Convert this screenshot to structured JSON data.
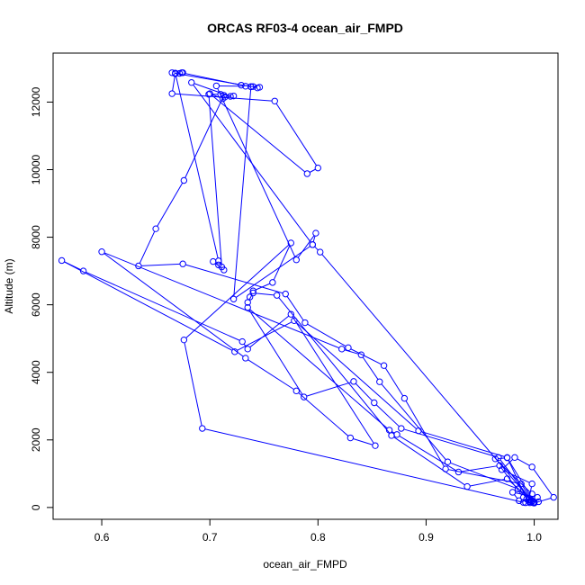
{
  "chart_data": {
    "type": "line",
    "title": "ORCAS RF03-4 ocean_air_FMPD",
    "xlabel": "ocean_air_FMPD",
    "ylabel": "Altitude (m)",
    "xlim": [
      0.555,
      1.022
    ],
    "ylim": [
      -350,
      13450
    ],
    "xticks": [
      0.6,
      0.7,
      0.8,
      0.9,
      1.0
    ],
    "xtick_labels": [
      "0.6",
      "0.7",
      "0.8",
      "0.9",
      "1.0"
    ],
    "yticks": [
      0,
      2000,
      4000,
      6000,
      8000,
      10000,
      12000
    ],
    "ytick_labels": [
      "0",
      "2000",
      "4000",
      "6000",
      "8000",
      "10000",
      "12000"
    ],
    "grid": false,
    "legend": "none",
    "series": [
      {
        "color": "#0000ff",
        "marker": "open-circle",
        "line": true,
        "points": [
          [
            0.672,
            12850
          ],
          [
            0.675,
            12870
          ],
          [
            0.668,
            12840
          ],
          [
            0.665,
            12250
          ],
          [
            0.76,
            12030
          ],
          [
            0.8,
            10050
          ],
          [
            0.79,
            9880
          ],
          [
            0.7,
            12250
          ],
          [
            0.712,
            12100
          ],
          [
            0.713,
            12200
          ],
          [
            0.676,
            9680
          ],
          [
            0.65,
            8250
          ],
          [
            0.634,
            7150
          ],
          [
            0.675,
            7210
          ],
          [
            0.77,
            6320
          ],
          [
            0.788,
            5470
          ],
          [
            0.828,
            4730
          ],
          [
            0.861,
            4200
          ],
          [
            0.88,
            3230
          ],
          [
            0.918,
            1140
          ],
          [
            0.988,
            700
          ],
          [
            0.998,
            200
          ],
          [
            1.0,
            150
          ],
          [
            0.993,
            250
          ],
          [
            0.975,
            1480
          ],
          [
            0.893,
            2270
          ],
          [
            0.778,
            5530
          ],
          [
            0.723,
            4610
          ],
          [
            0.563,
            7310
          ],
          [
            0.583,
            7000
          ],
          [
            0.73,
            4910
          ],
          [
            0.735,
            4690
          ],
          [
            0.775,
            5720
          ],
          [
            0.853,
            1830
          ],
          [
            0.83,
            2060
          ],
          [
            0.78,
            3450
          ],
          [
            0.733,
            4420
          ],
          [
            0.6,
            7570
          ],
          [
            0.822,
            4690
          ],
          [
            0.84,
            4520
          ],
          [
            0.857,
            3720
          ],
          [
            0.92,
            1350
          ],
          [
            0.985,
            550
          ],
          [
            0.996,
            180
          ],
          [
            0.99,
            300
          ],
          [
            0.968,
            1240
          ],
          [
            0.93,
            1050
          ],
          [
            0.873,
            2160
          ],
          [
            0.866,
            2290
          ],
          [
            0.735,
            5920
          ],
          [
            0.787,
            3270
          ],
          [
            0.833,
            3730
          ],
          [
            0.852,
            3100
          ],
          [
            0.877,
            2340
          ],
          [
            0.967,
            1480
          ],
          [
            0.997,
            220
          ],
          [
            1.0,
            140
          ],
          [
            0.975,
            850
          ],
          [
            0.938,
            620
          ],
          [
            0.868,
            2130
          ],
          [
            0.762,
            6280
          ],
          [
            0.74,
            6350
          ],
          [
            0.735,
            6070
          ],
          [
            0.737,
            6230
          ],
          [
            0.74,
            6410
          ],
          [
            0.758,
            6660
          ],
          [
            0.775,
            7830
          ],
          [
            0.676,
            4960
          ],
          [
            0.693,
            2340
          ],
          [
            0.99,
            150
          ],
          [
            1.0,
            130
          ],
          [
            1.018,
            300
          ],
          [
            0.998,
            1200
          ],
          [
            0.982,
            1480
          ],
          [
            0.97,
            1120
          ],
          [
            0.998,
            700
          ],
          [
            0.995,
            230
          ],
          [
            0.998,
            180
          ],
          [
            1.003,
            300
          ],
          [
            0.98,
            450
          ],
          [
            0.986,
            200
          ],
          [
            0.992,
            140
          ],
          [
            0.996,
            140
          ],
          [
            1.0,
            160
          ],
          [
            0.975,
            1470
          ],
          [
            0.964,
            1440
          ],
          [
            0.998,
            400
          ],
          [
            0.996,
            170
          ],
          [
            1.004,
            170
          ],
          [
            0.999,
            140
          ],
          [
            0.802,
            7560
          ],
          [
            0.795,
            7780
          ],
          [
            0.798,
            8120
          ],
          [
            0.78,
            7330
          ],
          [
            0.706,
            12480
          ],
          [
            0.733,
            12470
          ],
          [
            0.746,
            12440
          ],
          [
            0.74,
            12460
          ],
          [
            0.729,
            12500
          ],
          [
            0.674,
            12870
          ],
          [
            0.668,
            12860
          ],
          [
            0.708,
            7300
          ],
          [
            0.708,
            7180
          ],
          [
            0.703,
            7280
          ],
          [
            0.713,
            7030
          ],
          [
            0.711,
            7120
          ],
          [
            0.699,
            12230
          ],
          [
            0.71,
            12230
          ],
          [
            0.722,
            12180
          ],
          [
            0.714,
            12150
          ],
          [
            0.719,
            12170
          ],
          [
            0.683,
            12580
          ],
          [
            0.795,
            7780
          ],
          [
            0.722,
            6170
          ],
          [
            0.738,
            12450
          ],
          [
            0.744,
            12420
          ],
          [
            0.738,
            12460
          ],
          [
            0.665,
            12870
          ]
        ]
      }
    ]
  }
}
